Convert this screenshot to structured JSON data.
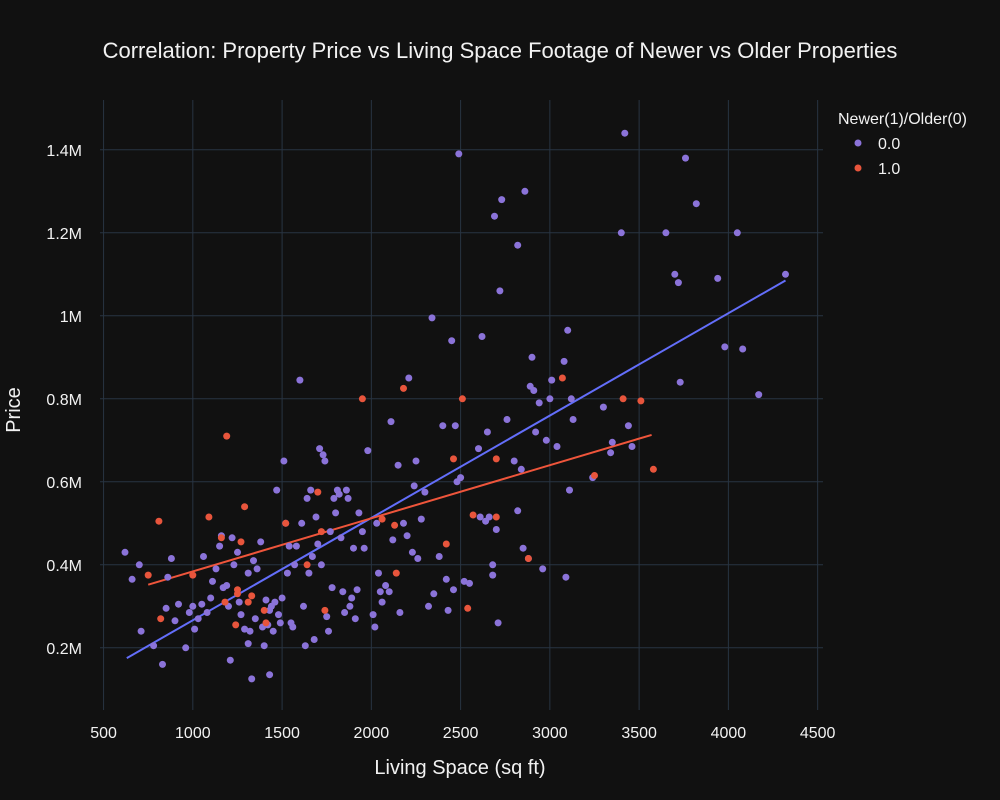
{
  "colors": {
    "background": "#111111",
    "grid": "#283442",
    "text": "#f2f2f2",
    "series_older": "#8b73d9",
    "series_newer": "#e8553c",
    "trend_older": "#636efa",
    "trend_newer": "#ef553b"
  },
  "chart_data": {
    "type": "scatter",
    "title": "Correlation: Property Price vs Living Space Footage of Newer vs Older Properties",
    "xlabel": "Living Space (sq ft)",
    "ylabel": "Price",
    "xlim": [
      480,
      4530
    ],
    "ylim": [
      50000,
      1520000
    ],
    "x_ticks": [
      500,
      1000,
      1500,
      2000,
      2500,
      3000,
      3500,
      4000,
      4500
    ],
    "x_tick_labels": [
      "500",
      "1000",
      "1500",
      "2000",
      "2500",
      "3000",
      "3500",
      "4000",
      "4500"
    ],
    "y_ticks": [
      200000,
      400000,
      600000,
      800000,
      1000000,
      1200000,
      1400000
    ],
    "y_tick_labels": [
      "0.2M",
      "0.4M",
      "0.6M",
      "0.8M",
      "1M",
      "1.2M",
      "1.4M"
    ],
    "grid": true,
    "legend": {
      "title": "Newer(1)/Older(0)",
      "position": "top-right"
    },
    "series": [
      {
        "name": "0.0",
        "trendline": [
          [
            630,
            175000
          ],
          [
            4320,
            1085000
          ]
        ],
        "points": [
          [
            620,
            430000
          ],
          [
            660,
            365000
          ],
          [
            700,
            400000
          ],
          [
            710,
            240000
          ],
          [
            780,
            205000
          ],
          [
            830,
            160000
          ],
          [
            850,
            295000
          ],
          [
            860,
            370000
          ],
          [
            880,
            415000
          ],
          [
            900,
            265000
          ],
          [
            920,
            305000
          ],
          [
            960,
            200000
          ],
          [
            980,
            285000
          ],
          [
            1000,
            300000
          ],
          [
            1010,
            245000
          ],
          [
            1030,
            270000
          ],
          [
            1050,
            305000
          ],
          [
            1060,
            420000
          ],
          [
            1080,
            285000
          ],
          [
            1100,
            320000
          ],
          [
            1110,
            360000
          ],
          [
            1130,
            390000
          ],
          [
            1150,
            445000
          ],
          [
            1160,
            470000
          ],
          [
            1170,
            345000
          ],
          [
            1190,
            350000
          ],
          [
            1200,
            300000
          ],
          [
            1210,
            170000
          ],
          [
            1220,
            465000
          ],
          [
            1230,
            400000
          ],
          [
            1250,
            430000
          ],
          [
            1260,
            310000
          ],
          [
            1270,
            280000
          ],
          [
            1290,
            245000
          ],
          [
            1310,
            380000
          ],
          [
            1310,
            210000
          ],
          [
            1320,
            240000
          ],
          [
            1330,
            125000
          ],
          [
            1340,
            410000
          ],
          [
            1350,
            270000
          ],
          [
            1360,
            390000
          ],
          [
            1380,
            455000
          ],
          [
            1390,
            250000
          ],
          [
            1400,
            205000
          ],
          [
            1410,
            315000
          ],
          [
            1420,
            255000
          ],
          [
            1430,
            135000
          ],
          [
            1430,
            290000
          ],
          [
            1440,
            300000
          ],
          [
            1450,
            240000
          ],
          [
            1460,
            310000
          ],
          [
            1470,
            580000
          ],
          [
            1480,
            280000
          ],
          [
            1490,
            260000
          ],
          [
            1500,
            320000
          ],
          [
            1510,
            650000
          ],
          [
            1520,
            500000
          ],
          [
            1530,
            380000
          ],
          [
            1540,
            445000
          ],
          [
            1550,
            260000
          ],
          [
            1560,
            250000
          ],
          [
            1570,
            400000
          ],
          [
            1580,
            445000
          ],
          [
            1600,
            845000
          ],
          [
            1610,
            500000
          ],
          [
            1620,
            300000
          ],
          [
            1630,
            205000
          ],
          [
            1640,
            560000
          ],
          [
            1650,
            380000
          ],
          [
            1660,
            580000
          ],
          [
            1670,
            420000
          ],
          [
            1680,
            220000
          ],
          [
            1690,
            515000
          ],
          [
            1700,
            450000
          ],
          [
            1710,
            680000
          ],
          [
            1720,
            400000
          ],
          [
            1730,
            665000
          ],
          [
            1740,
            650000
          ],
          [
            1750,
            275000
          ],
          [
            1760,
            240000
          ],
          [
            1770,
            480000
          ],
          [
            1780,
            345000
          ],
          [
            1790,
            560000
          ],
          [
            1800,
            525000
          ],
          [
            1810,
            580000
          ],
          [
            1820,
            570000
          ],
          [
            1830,
            465000
          ],
          [
            1840,
            335000
          ],
          [
            1850,
            285000
          ],
          [
            1860,
            580000
          ],
          [
            1870,
            560000
          ],
          [
            1880,
            300000
          ],
          [
            1890,
            320000
          ],
          [
            1900,
            440000
          ],
          [
            1910,
            270000
          ],
          [
            1920,
            340000
          ],
          [
            1930,
            525000
          ],
          [
            1950,
            480000
          ],
          [
            1960,
            440000
          ],
          [
            1980,
            675000
          ],
          [
            2010,
            280000
          ],
          [
            2020,
            250000
          ],
          [
            2030,
            500000
          ],
          [
            2040,
            380000
          ],
          [
            2050,
            335000
          ],
          [
            2060,
            310000
          ],
          [
            2080,
            350000
          ],
          [
            2100,
            335000
          ],
          [
            2110,
            745000
          ],
          [
            2120,
            460000
          ],
          [
            2150,
            640000
          ],
          [
            2160,
            285000
          ],
          [
            2180,
            500000
          ],
          [
            2200,
            470000
          ],
          [
            2210,
            850000
          ],
          [
            2230,
            430000
          ],
          [
            2240,
            590000
          ],
          [
            2250,
            650000
          ],
          [
            2260,
            415000
          ],
          [
            2280,
            510000
          ],
          [
            2300,
            575000
          ],
          [
            2320,
            300000
          ],
          [
            2340,
            995000
          ],
          [
            2350,
            330000
          ],
          [
            2380,
            420000
          ],
          [
            2400,
            735000
          ],
          [
            2420,
            365000
          ],
          [
            2430,
            290000
          ],
          [
            2450,
            940000
          ],
          [
            2460,
            340000
          ],
          [
            2470,
            735000
          ],
          [
            2480,
            600000
          ],
          [
            2490,
            1390000
          ],
          [
            2500,
            610000
          ],
          [
            2520,
            360000
          ],
          [
            2550,
            355000
          ],
          [
            2600,
            680000
          ],
          [
            2610,
            515000
          ],
          [
            2620,
            950000
          ],
          [
            2640,
            505000
          ],
          [
            2650,
            720000
          ],
          [
            2660,
            515000
          ],
          [
            2680,
            375000
          ],
          [
            2680,
            400000
          ],
          [
            2690,
            1240000
          ],
          [
            2700,
            485000
          ],
          [
            2710,
            260000
          ],
          [
            2720,
            1060000
          ],
          [
            2730,
            1280000
          ],
          [
            2760,
            750000
          ],
          [
            2800,
            650000
          ],
          [
            2820,
            1170000
          ],
          [
            2820,
            530000
          ],
          [
            2840,
            630000
          ],
          [
            2850,
            440000
          ],
          [
            2860,
            1300000
          ],
          [
            2880,
            415000
          ],
          [
            2890,
            830000
          ],
          [
            2900,
            900000
          ],
          [
            2910,
            820000
          ],
          [
            2920,
            720000
          ],
          [
            2940,
            790000
          ],
          [
            2960,
            390000
          ],
          [
            2980,
            700000
          ],
          [
            3000,
            800000
          ],
          [
            3010,
            845000
          ],
          [
            3040,
            685000
          ],
          [
            3080,
            890000
          ],
          [
            3090,
            370000
          ],
          [
            3100,
            965000
          ],
          [
            3110,
            580000
          ],
          [
            3120,
            800000
          ],
          [
            3130,
            750000
          ],
          [
            3240,
            610000
          ],
          [
            3300,
            780000
          ],
          [
            3340,
            670000
          ],
          [
            3350,
            695000
          ],
          [
            3400,
            1200000
          ],
          [
            3420,
            1440000
          ],
          [
            3440,
            735000
          ],
          [
            3460,
            685000
          ],
          [
            3650,
            1200000
          ],
          [
            3700,
            1100000
          ],
          [
            3720,
            1080000
          ],
          [
            3730,
            840000
          ],
          [
            3760,
            1380000
          ],
          [
            3820,
            1270000
          ],
          [
            3940,
            1090000
          ],
          [
            3980,
            925000
          ],
          [
            4050,
            1200000
          ],
          [
            4080,
            920000
          ],
          [
            4170,
            810000
          ],
          [
            4320,
            1100000
          ]
        ]
      },
      {
        "name": "1.0",
        "trendline": [
          [
            750,
            352000
          ],
          [
            3570,
            713000
          ]
        ],
        "points": [
          [
            750,
            375000
          ],
          [
            810,
            505000
          ],
          [
            820,
            270000
          ],
          [
            1000,
            375000
          ],
          [
            1090,
            515000
          ],
          [
            1160,
            465000
          ],
          [
            1180,
            310000
          ],
          [
            1190,
            710000
          ],
          [
            1240,
            255000
          ],
          [
            1250,
            330000
          ],
          [
            1250,
            340000
          ],
          [
            1270,
            455000
          ],
          [
            1290,
            540000
          ],
          [
            1310,
            310000
          ],
          [
            1330,
            325000
          ],
          [
            1400,
            290000
          ],
          [
            1410,
            260000
          ],
          [
            1520,
            500000
          ],
          [
            1640,
            400000
          ],
          [
            1700,
            575000
          ],
          [
            1720,
            480000
          ],
          [
            1740,
            290000
          ],
          [
            1950,
            800000
          ],
          [
            2060,
            510000
          ],
          [
            2130,
            495000
          ],
          [
            2140,
            380000
          ],
          [
            2180,
            825000
          ],
          [
            2420,
            450000
          ],
          [
            2460,
            655000
          ],
          [
            2510,
            800000
          ],
          [
            2540,
            295000
          ],
          [
            2570,
            520000
          ],
          [
            2700,
            655000
          ],
          [
            2700,
            515000
          ],
          [
            2880,
            415000
          ],
          [
            3070,
            850000
          ],
          [
            3250,
            615000
          ],
          [
            3410,
            800000
          ],
          [
            3510,
            795000
          ],
          [
            3580,
            630000
          ]
        ]
      }
    ]
  }
}
